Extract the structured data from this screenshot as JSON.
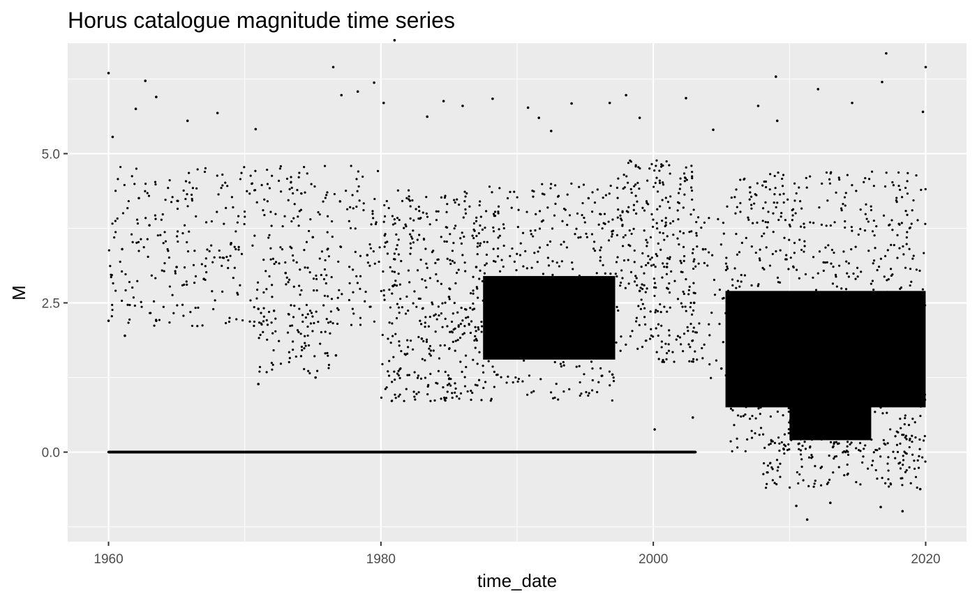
{
  "chart_data": {
    "type": "scatter",
    "title": "Horus catalogue magnitude time series",
    "xlabel": "time_date",
    "ylabel": "M",
    "xlim": [
      1957.0,
      2023.0
    ],
    "ylim": [
      -1.5,
      6.85
    ],
    "x_ticks": [
      1960,
      1980,
      2000,
      2020
    ],
    "x_tick_labels": [
      "1960",
      "1980",
      "2000",
      "2020"
    ],
    "y_ticks": [
      0.0,
      2.5,
      5.0
    ],
    "y_tick_labels": [
      "0.0",
      "2.5",
      "5.0"
    ],
    "x_minor_ticks": [
      1970,
      1990,
      2010
    ],
    "y_minor_ticks": [
      -1.25,
      1.25,
      3.75,
      6.25
    ],
    "grid": true,
    "colors": {
      "panel_bg": "#ebebeb",
      "grid": "#ffffff",
      "points": "#000000"
    },
    "points": [
      [
        1960.0,
        6.35
      ],
      [
        1960.3,
        5.28
      ],
      [
        1962.7,
        6.22
      ],
      [
        1962.0,
        5.75
      ],
      [
        1963.5,
        5.95
      ],
      [
        1965.8,
        5.55
      ],
      [
        1968.0,
        5.68
      ],
      [
        1970.8,
        5.41
      ],
      [
        1976.5,
        6.45
      ],
      [
        1977.1,
        5.98
      ],
      [
        1978.3,
        6.04
      ],
      [
        1979.5,
        6.19
      ],
      [
        1980.2,
        5.85
      ],
      [
        1981.0,
        6.9
      ],
      [
        1983.4,
        5.62
      ],
      [
        1984.6,
        5.88
      ],
      [
        1986.0,
        5.8
      ],
      [
        1988.2,
        5.92
      ],
      [
        1990.8,
        5.77
      ],
      [
        1991.6,
        5.6
      ],
      [
        1992.5,
        5.38
      ],
      [
        1994.0,
        5.84
      ],
      [
        1996.8,
        5.85
      ],
      [
        1998.0,
        5.98
      ],
      [
        1999.0,
        5.6
      ],
      [
        2002.4,
        5.93
      ],
      [
        2004.4,
        5.4
      ],
      [
        2007.7,
        5.8
      ],
      [
        2009.0,
        6.29
      ],
      [
        2009.1,
        5.55
      ],
      [
        2012.1,
        6.08
      ],
      [
        2014.6,
        5.85
      ],
      [
        2016.8,
        6.2
      ],
      [
        2017.1,
        6.68
      ],
      [
        2019.8,
        5.7
      ],
      [
        2020.0,
        6.45
      ],
      [
        1960.0,
        2.2
      ],
      [
        1961.2,
        1.95
      ],
      [
        1963.5,
        2.2
      ],
      [
        1971.0,
        1.14
      ],
      [
        1975.2,
        1.25
      ],
      [
        1976.7,
        1.62
      ],
      [
        2000.1,
        0.38
      ],
      [
        2002.9,
        0.58
      ],
      [
        2010.5,
        -0.9
      ],
      [
        2011.3,
        -1.13
      ],
      [
        2013.0,
        -0.85
      ],
      [
        2016.7,
        -0.92
      ],
      [
        2018.3,
        -0.99
      ],
      [
        2019.6,
        -0.62
      ],
      [
        1960.0,
        0.0
      ],
      [
        1962.0,
        0.0
      ],
      [
        1964.0,
        0.0
      ],
      [
        1966.0,
        0.0
      ],
      [
        1968.0,
        0.0
      ],
      [
        1970.0,
        0.0
      ],
      [
        1972.0,
        0.0
      ],
      [
        1974.0,
        0.0
      ],
      [
        1976.0,
        0.0
      ],
      [
        1978.0,
        0.0
      ],
      [
        1980.0,
        0.0
      ],
      [
        1982.0,
        0.0
      ],
      [
        1984.0,
        0.0
      ],
      [
        1986.0,
        0.0
      ],
      [
        1988.0,
        0.0
      ],
      [
        1990.0,
        0.0
      ],
      [
        1992.0,
        0.0
      ],
      [
        1994.0,
        0.0
      ],
      [
        1996.0,
        0.0
      ],
      [
        1998.0,
        0.0
      ],
      [
        2000.0,
        0.0
      ],
      [
        2002.0,
        0.0
      ],
      [
        2003.1,
        0.0
      ],
      [
        1961.0,
        3.4
      ],
      [
        1963.0,
        3.8
      ],
      [
        1965.0,
        3.1
      ],
      [
        1967.0,
        2.9
      ],
      [
        1969.0,
        3.5
      ],
      [
        1971.0,
        2.4
      ],
      [
        1973.0,
        3.0
      ],
      [
        1975.0,
        3.6
      ],
      [
        1977.0,
        4.2
      ],
      [
        1979.0,
        3.3
      ],
      [
        1981.0,
        2.8
      ],
      [
        1983.0,
        1.9
      ],
      [
        1985.0,
        2.6
      ],
      [
        1987.0,
        3.1
      ],
      [
        1989.0,
        2.2
      ],
      [
        1991.0,
        1.8
      ],
      [
        1993.0,
        2.4
      ],
      [
        1995.0,
        2.0
      ],
      [
        1997.0,
        1.3
      ],
      [
        1999.0,
        2.7
      ],
      [
        2001.0,
        3.1
      ],
      [
        2003.0,
        2.5
      ],
      [
        2005.0,
        1.4
      ],
      [
        2007.0,
        1.2
      ],
      [
        2009.0,
        1.6
      ],
      [
        2011.0,
        0.9
      ],
      [
        2013.0,
        1.8
      ],
      [
        2015.0,
        1.1
      ],
      [
        2017.0,
        2.3
      ],
      [
        2019.0,
        1.5
      ]
    ]
  }
}
